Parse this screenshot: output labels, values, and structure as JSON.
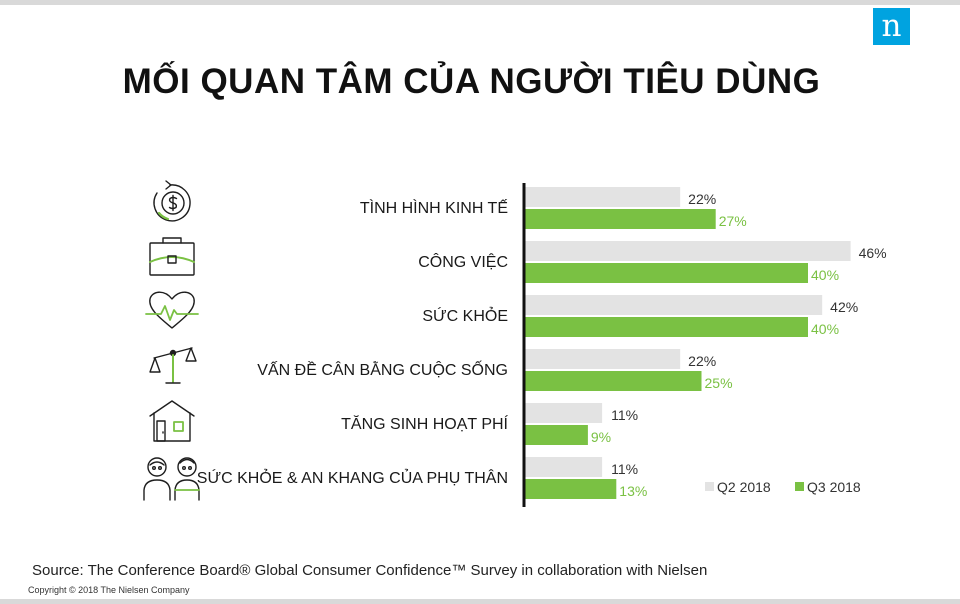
{
  "logo": {
    "text": "n",
    "color": "#00a3e0"
  },
  "title": "MỐI QUAN TÂM CỦA NGƯỜI TIÊU DÙNG",
  "chart_data": {
    "type": "bar",
    "orientation": "horizontal",
    "categories": [
      "TÌNH HÌNH KINH TẾ",
      "CÔNG VIỆC",
      "SỨC KHỎE",
      "VẤN ĐỀ CÂN BẰNG CUỘC SỐNG",
      "TĂNG SINH HOẠT PHÍ",
      "SỨC KHỎE & AN KHANG CỦA PHỤ THÂN"
    ],
    "category_icons": [
      "dollar-cycle-icon",
      "briefcase-icon",
      "heart-pulse-icon",
      "balance-scale-icon",
      "house-icon",
      "parents-icon"
    ],
    "series": [
      {
        "name": "Q2 2018",
        "values": [
          22,
          46,
          42,
          22,
          11,
          11
        ],
        "labels": [
          "22%",
          "46%",
          "42%",
          "22%",
          "11%",
          "11%"
        ],
        "color": "#e3e3e3"
      },
      {
        "name": "Q3 2018",
        "values": [
          27,
          40,
          40,
          25,
          9,
          13
        ],
        "labels": [
          "27%",
          "40%",
          "40%",
          "25%",
          "9%",
          "13%"
        ],
        "color": "#7ac143"
      }
    ],
    "xlim": [
      0,
      50
    ],
    "legend_position": "bottom-right"
  },
  "source": "Source: The Conference Board® Global Consumer Confidence™ Survey in collaboration with Nielsen",
  "copyright": "Copyright © 2018  The Nielsen Company"
}
